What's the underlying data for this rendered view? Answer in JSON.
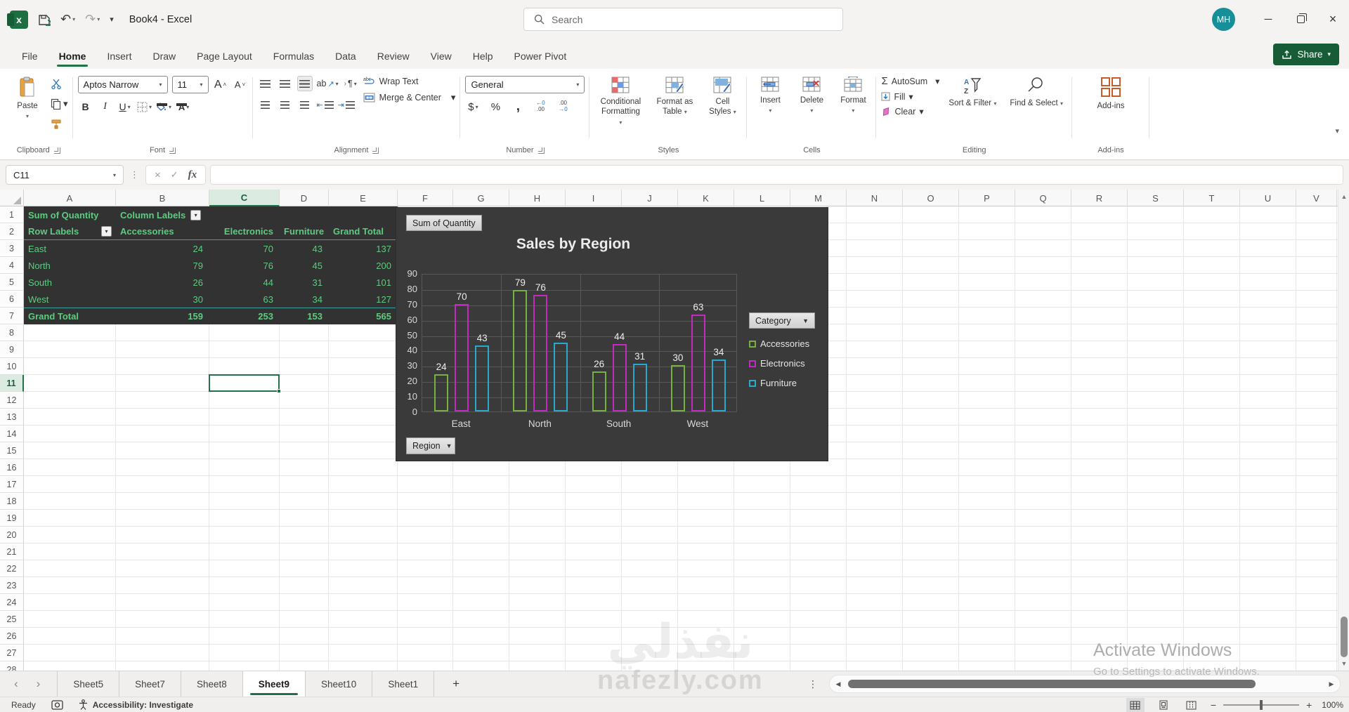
{
  "app": {
    "accent_color": "#217346",
    "pivot_text_color": "#5ecb81",
    "pivot_bg": "#323232"
  },
  "titlebar": {
    "title": "Book4 - Excel",
    "search_placeholder": "Search",
    "avatar_initials": "MH"
  },
  "ribbon_tabs": {
    "items": [
      "File",
      "Home",
      "Insert",
      "Draw",
      "Page Layout",
      "Formulas",
      "Data",
      "Review",
      "View",
      "Help",
      "Power Pivot"
    ],
    "active": "Home"
  },
  "share": {
    "label": "Share"
  },
  "ribbon": {
    "clipboard": {
      "group": "Clipboard",
      "paste": "Paste"
    },
    "font": {
      "group": "Font",
      "name": "Aptos Narrow",
      "size": "11",
      "bold": "B",
      "italic": "I",
      "underline": "U"
    },
    "alignment": {
      "group": "Alignment",
      "wrap": "Wrap Text",
      "merge": "Merge & Center"
    },
    "number": {
      "group": "Number",
      "format": "General",
      "currency": "$",
      "percent": "%",
      "comma": ","
    },
    "styles": {
      "group": "Styles",
      "conditional": "Conditional Formatting",
      "format_table": "Format as Table",
      "cell_styles": "Cell Styles"
    },
    "cells": {
      "group": "Cells",
      "insert": "Insert",
      "delete": "Delete",
      "format": "Format"
    },
    "editing": {
      "group": "Editing",
      "autosum": "AutoSum",
      "fill": "Fill",
      "clear": "Clear",
      "sort": "Sort & Filter",
      "find": "Find & Select"
    },
    "addins": {
      "group": "Add-ins",
      "label": "Add-ins"
    }
  },
  "formula_bar": {
    "name_box": "C11",
    "fx": "fx"
  },
  "grid": {
    "columns": [
      "A",
      "B",
      "C",
      "D",
      "E",
      "F",
      "G",
      "H",
      "I",
      "J",
      "K",
      "L",
      "M",
      "N",
      "O",
      "P",
      "Q",
      "R",
      "S",
      "T",
      "U",
      "V"
    ],
    "row_count": 28,
    "selected_cell": "C11",
    "selected_column": "C",
    "selected_row": 11
  },
  "pivot": {
    "a1": "Sum of Quantity",
    "b1": "Column Labels",
    "header": [
      "Row Labels",
      "Accessories",
      "Electronics",
      "Furniture",
      "Grand Total"
    ],
    "rows": [
      {
        "label": "East",
        "values": [
          24,
          70,
          43,
          137
        ]
      },
      {
        "label": "North",
        "values": [
          79,
          76,
          45,
          200
        ]
      },
      {
        "label": "South",
        "values": [
          26,
          44,
          31,
          101
        ]
      },
      {
        "label": "West",
        "values": [
          30,
          63,
          34,
          127
        ]
      }
    ],
    "grand_total": {
      "label": "Grand Total",
      "values": [
        159,
        253,
        153,
        565
      ]
    }
  },
  "chart_data": {
    "type": "bar",
    "title": "Sales by Region",
    "categories": [
      "East",
      "North",
      "South",
      "West"
    ],
    "series": [
      {
        "name": "Accessories",
        "color": "#76b041",
        "values": [
          24,
          79,
          26,
          30
        ]
      },
      {
        "name": "Electronics",
        "color": "#c02bc0",
        "values": [
          70,
          76,
          44,
          63
        ]
      },
      {
        "name": "Furniture",
        "color": "#29a8d0",
        "values": [
          43,
          45,
          31,
          34
        ]
      }
    ],
    "ylim": [
      0,
      90
    ],
    "y_ticks": [
      90,
      80,
      70,
      60,
      50,
      40,
      30,
      20,
      10,
      0
    ],
    "grid": true,
    "legend_position": "right",
    "background": "#3a3a3a",
    "value_field_button": "Sum of Quantity",
    "axis_field_button": "Region",
    "legend_field_button": "Category"
  },
  "sheet_tabs": {
    "tabs": [
      "Sheet5",
      "Sheet7",
      "Sheet8",
      "Sheet9",
      "Sheet10",
      "Sheet1"
    ],
    "active": "Sheet9",
    "add_label": "+"
  },
  "status_bar": {
    "ready": "Ready",
    "accessibility": "Accessibility: Investigate",
    "zoom_level": "100%"
  },
  "watermarks": {
    "activate_line1": "Activate Windows",
    "activate_line2": "Go to Settings to activate Windows.",
    "site_arabic": "نفذلي",
    "site_domain": "nafezly.com"
  }
}
